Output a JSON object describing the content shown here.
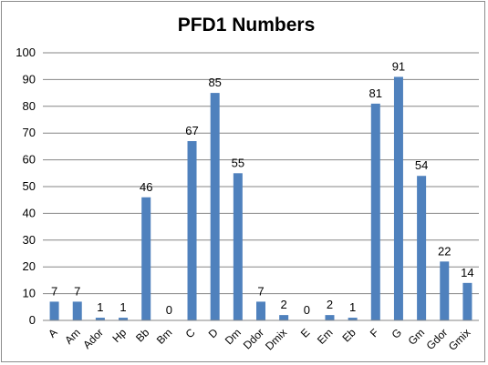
{
  "chart_data": {
    "type": "bar",
    "title": "PFD1 Numbers",
    "xlabel": "",
    "ylabel": "",
    "categories": [
      "A",
      "Am",
      "Ador",
      "Hp",
      "Bb",
      "Bm",
      "C",
      "D",
      "Dm",
      "Ddor",
      "Dmix",
      "E",
      "Em",
      "Eb",
      "F",
      "G",
      "Gm",
      "Gdor",
      "Gmix"
    ],
    "values": [
      7,
      7,
      1,
      1,
      46,
      0,
      67,
      85,
      55,
      7,
      2,
      0,
      2,
      1,
      81,
      91,
      54,
      22,
      14
    ],
    "ylim": [
      0,
      100
    ],
    "y_ticks": [
      0,
      10,
      20,
      30,
      40,
      50,
      60,
      70,
      80,
      90,
      100
    ],
    "grid": true,
    "legend": "none",
    "bar_color": "#4f81bd",
    "data_labels": true
  }
}
